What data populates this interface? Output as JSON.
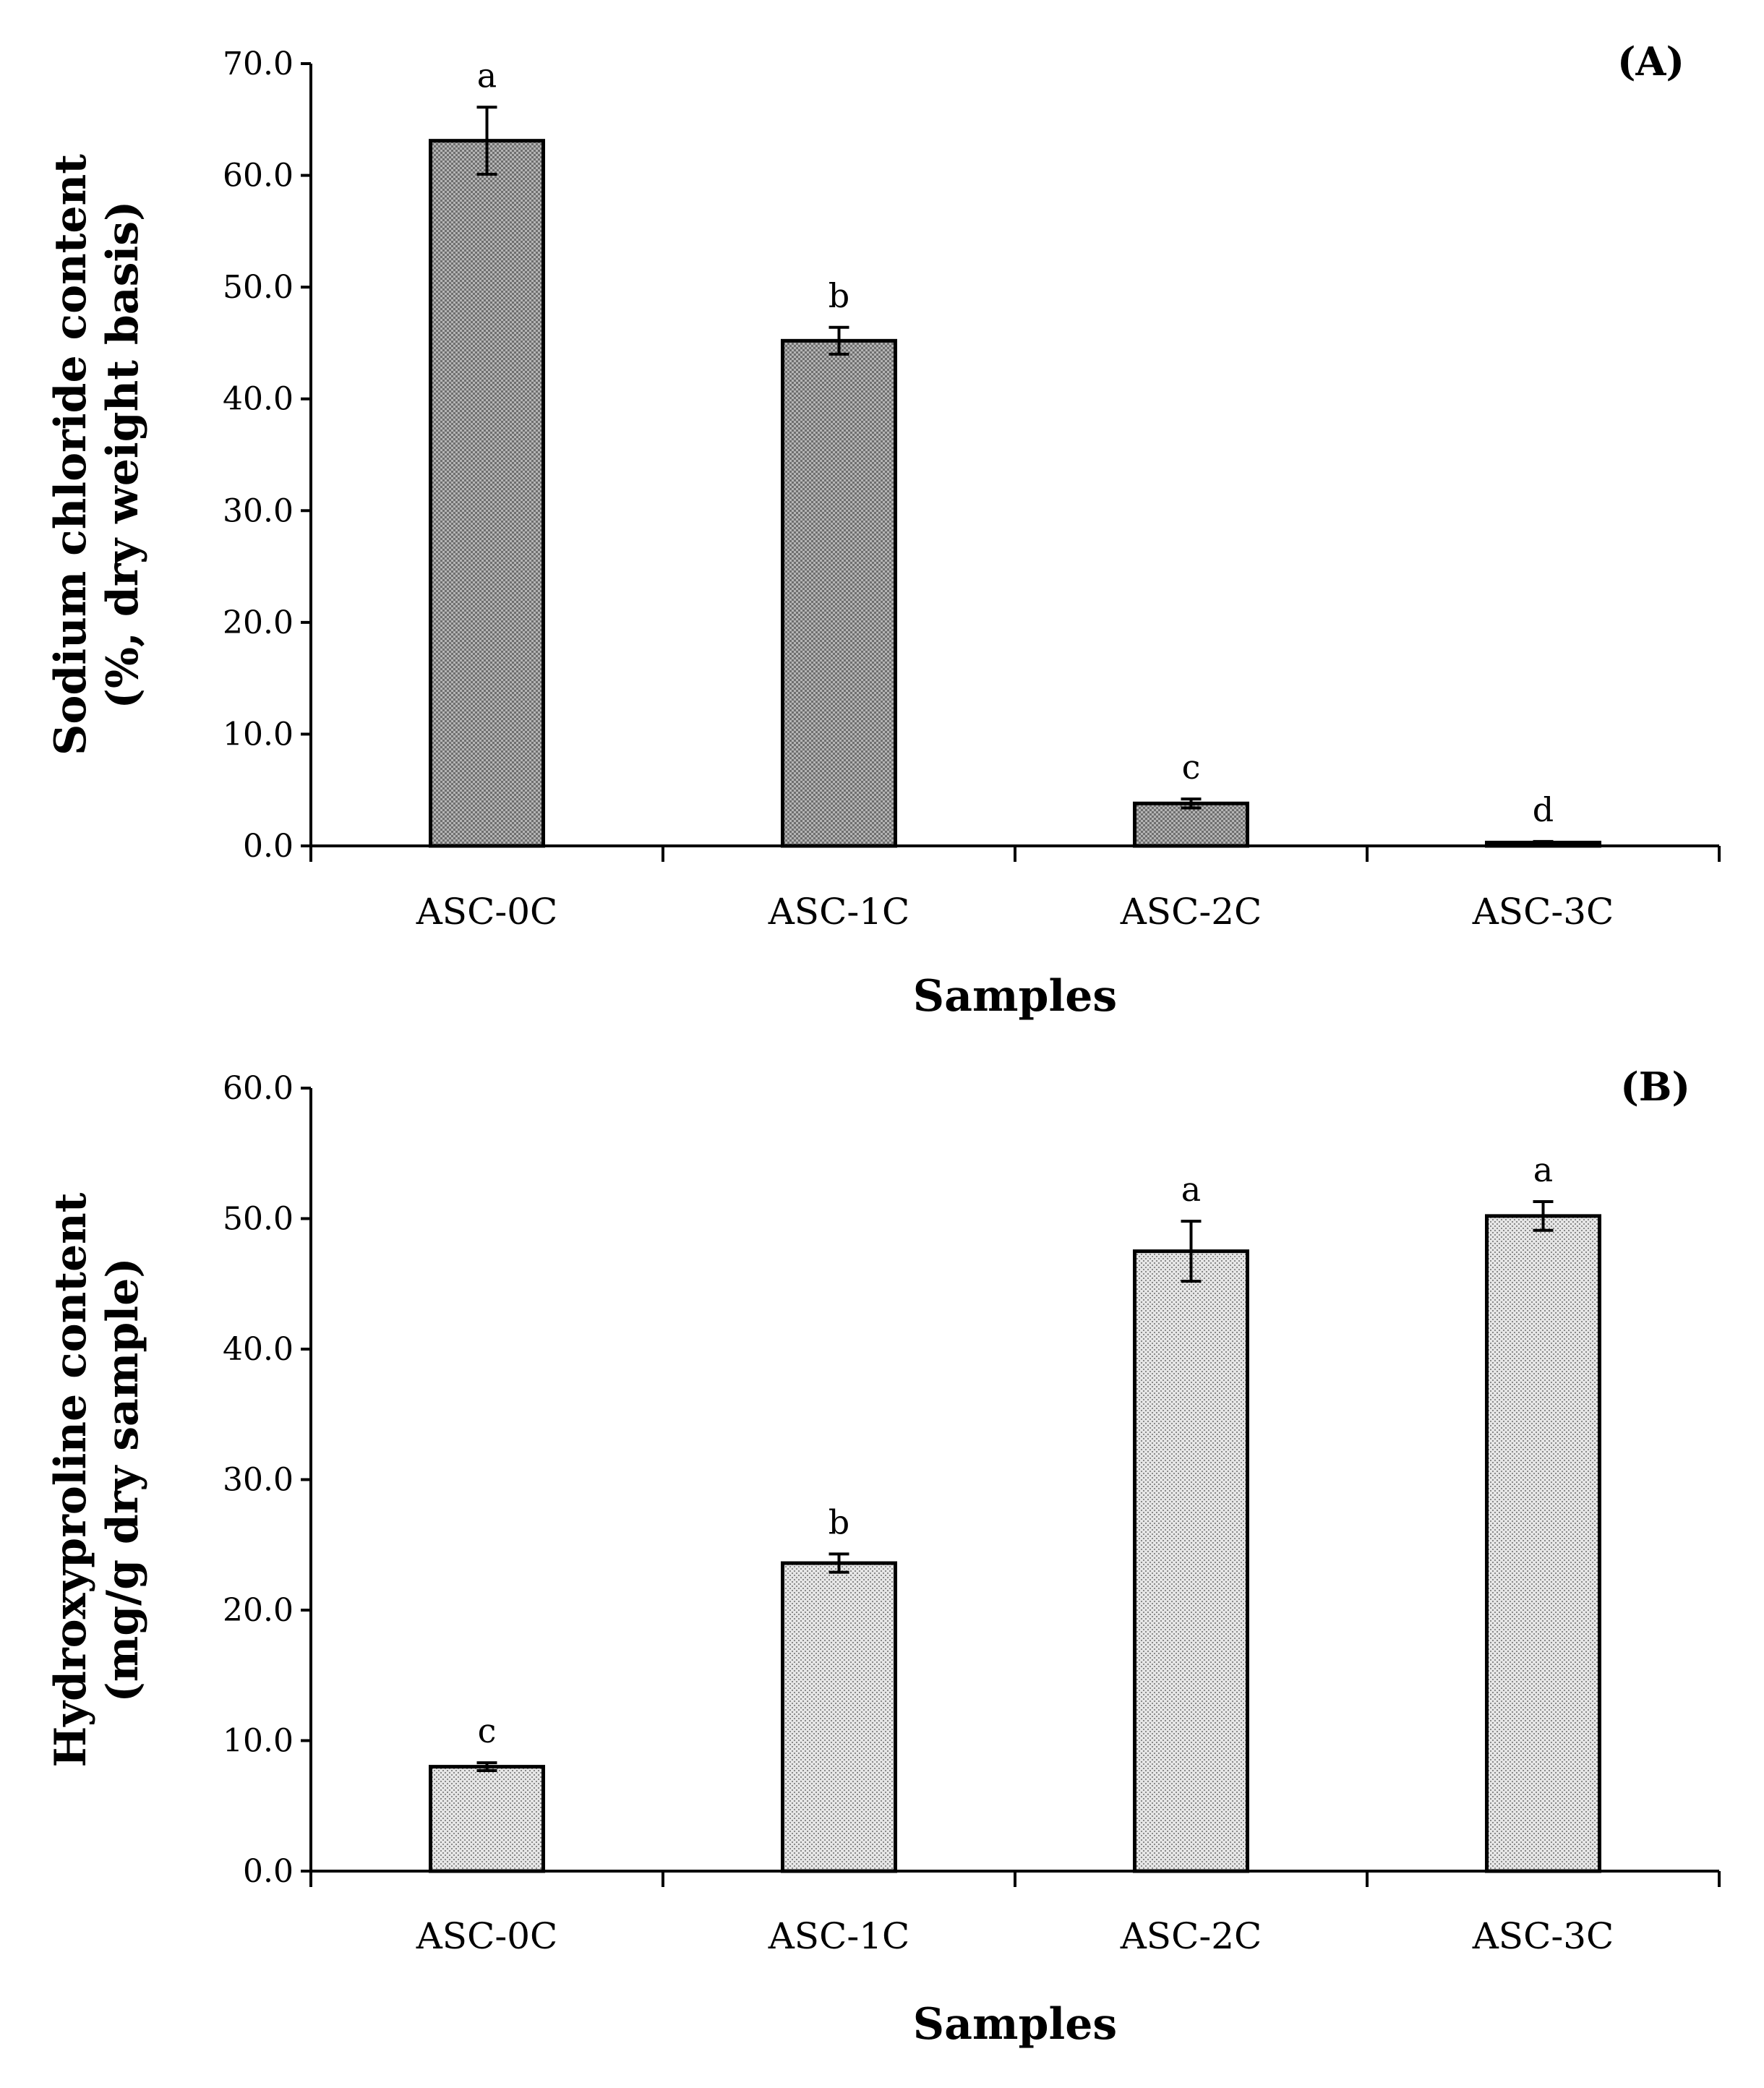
{
  "figure_title": "",
  "chart_data": [
    {
      "type": "bar",
      "panel_label": "(A)",
      "categories": [
        "ASC-0C",
        "ASC-1C",
        "ASC-2C",
        "ASC-3C"
      ],
      "values": [
        63.1,
        45.2,
        3.8,
        0.3
      ],
      "errors": [
        3.0,
        1.2,
        0.4,
        0.1
      ],
      "significance": [
        "a",
        "b",
        "c",
        "d"
      ],
      "ylabel_lines": [
        "Sodium chloride content",
        "(%, dry weight basis)"
      ],
      "xlabel": "Samples",
      "ylim": [
        0,
        70
      ],
      "yticks": [
        0,
        10,
        20,
        30,
        40,
        50,
        60,
        70
      ],
      "ytick_labels": [
        "0.0",
        "10.0",
        "20.0",
        "30.0",
        "40.0",
        "50.0",
        "60.0",
        "70.0"
      ],
      "bar_color": "#8c8c8c"
    },
    {
      "type": "bar",
      "panel_label": "(B)",
      "categories": [
        "ASC-0C",
        "ASC-1C",
        "ASC-2C",
        "ASC-3C"
      ],
      "values": [
        8.0,
        23.6,
        47.5,
        50.2
      ],
      "errors": [
        0.3,
        0.7,
        2.3,
        1.1
      ],
      "significance": [
        "c",
        "b",
        "a",
        "a"
      ],
      "ylabel_lines": [
        "Hydroxyproline content",
        "(mg/g dry sample)"
      ],
      "xlabel": "Samples",
      "ylim": [
        0,
        60
      ],
      "yticks": [
        0,
        10,
        20,
        30,
        40,
        50,
        60
      ],
      "ytick_labels": [
        "0.0",
        "10.0",
        "20.0",
        "30.0",
        "40.0",
        "50.0",
        "60.0"
      ],
      "bar_color": "#c8c8c8"
    }
  ]
}
